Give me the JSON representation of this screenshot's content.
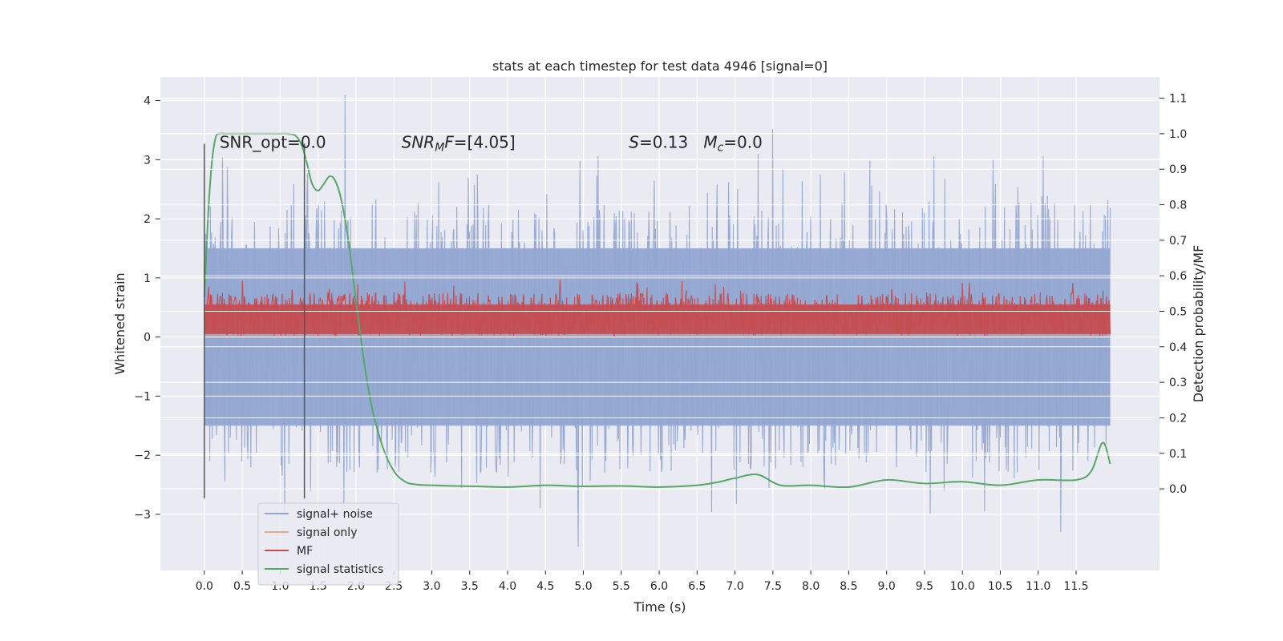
{
  "chart_data": {
    "type": "line",
    "title": "stats at each timestep for test data 4946 [signal=0]",
    "xlabel": "Time (s)",
    "ylabel": "Whitened strain",
    "y2label": "Detection probability/MF",
    "xlim": [
      -0.58,
      12.6
    ],
    "ylim": [
      -3.95,
      4.4
    ],
    "y2lim": [
      -0.23,
      1.16
    ],
    "x_ticks": [
      0.0,
      0.5,
      1.0,
      1.5,
      2.0,
      2.5,
      3.0,
      3.5,
      4.0,
      4.5,
      5.0,
      5.5,
      6.0,
      6.5,
      7.0,
      7.5,
      8.0,
      8.5,
      9.0,
      9.5,
      10.0,
      10.5,
      11.0,
      11.5
    ],
    "x_tick_labels": [
      "0.0",
      "0.5",
      "1.0",
      "1.5",
      "2.0",
      "2.5",
      "3.0",
      "3.5",
      "4.0",
      "4.5",
      "5.0",
      "5.5",
      "6.0",
      "6.5",
      "7.0",
      "7.5",
      "8.0",
      "8.5",
      "9.0",
      "9.5",
      "10.0",
      "10.5",
      "11.0",
      "11.5"
    ],
    "y_ticks": [
      -3,
      -2,
      -1,
      0,
      1,
      2,
      3,
      4
    ],
    "y_tick_labels": [
      "−3",
      "−2",
      "−1",
      "0",
      "1",
      "2",
      "3",
      "4"
    ],
    "y2_ticks": [
      0.0,
      0.1,
      0.2,
      0.3,
      0.4,
      0.5,
      0.6,
      0.7,
      0.8,
      0.9,
      1.0,
      1.1
    ],
    "y2_tick_labels": [
      "0.0",
      "0.1",
      "0.2",
      "0.3",
      "0.4",
      "0.5",
      "0.6",
      "0.7",
      "0.8",
      "0.9",
      "1.0",
      "1.1"
    ],
    "grid": true,
    "legend_position": "lower-left",
    "vlines": [
      0.0,
      1.32
    ],
    "vline_range": [
      -2.73,
      3.27
    ],
    "series": [
      {
        "name": "signal+ noise",
        "color": "#92a6d1",
        "axis": "left",
        "kind": "noise-band",
        "x_range": [
          0.0,
          11.95
        ],
        "center": 0.0,
        "band": [
          -1.5,
          1.5
        ],
        "extreme_peaks": [
          {
            "x": 1.86,
            "y": 4.1
          },
          {
            "x": 7.5,
            "y": 3.52
          },
          {
            "x": 4.93,
            "y": -3.55
          },
          {
            "x": 11.3,
            "y": -3.3
          }
        ]
      },
      {
        "name": "signal only",
        "color": "#e8a88a",
        "axis": "left",
        "x": [
          0.0,
          11.95
        ],
        "y": [
          0.0,
          0.0
        ]
      },
      {
        "name": "MF",
        "color": "#c44e52",
        "axis": "left",
        "kind": "noise-band",
        "x_range": [
          0.0,
          11.95
        ],
        "center": 0.25,
        "band": [
          0.02,
          0.75
        ],
        "peak_max": 1.0
      },
      {
        "name": "signal statistics",
        "color": "#55a868",
        "axis": "right",
        "x": [
          0.0,
          0.05,
          0.1,
          0.15,
          0.2,
          0.3,
          0.5,
          0.8,
          1.0,
          1.1,
          1.2,
          1.28,
          1.35,
          1.42,
          1.5,
          1.58,
          1.65,
          1.72,
          1.8,
          1.9,
          2.0,
          2.1,
          2.2,
          2.35,
          2.5,
          2.65,
          2.8,
          3.0,
          3.3,
          3.6,
          4.0,
          4.5,
          4.8,
          5.0,
          5.5,
          6.0,
          6.5,
          6.8,
          7.0,
          7.3,
          7.6,
          8.0,
          8.5,
          9.0,
          9.5,
          10.0,
          10.5,
          11.0,
          11.5,
          11.7,
          11.85,
          11.95
        ],
        "y": [
          0.54,
          0.77,
          0.92,
          0.99,
          1.0,
          1.0,
          1.0,
          1.0,
          1.0,
          1.0,
          0.995,
          0.97,
          0.92,
          0.86,
          0.84,
          0.86,
          0.88,
          0.87,
          0.82,
          0.7,
          0.53,
          0.37,
          0.24,
          0.12,
          0.05,
          0.02,
          0.012,
          0.01,
          0.008,
          0.007,
          0.005,
          0.01,
          0.008,
          0.007,
          0.008,
          0.005,
          0.01,
          0.02,
          0.03,
          0.04,
          0.01,
          0.01,
          0.005,
          0.025,
          0.015,
          0.02,
          0.01,
          0.025,
          0.025,
          0.05,
          0.13,
          0.07
        ]
      }
    ],
    "annotations": [
      {
        "text": "SNR_opt=0.0",
        "x": 0.2,
        "y": 3.2
      },
      {
        "text_parts": [
          "SNR",
          "M",
          "F=[4.05]"
        ],
        "x": 2.6,
        "y": 3.2
      },
      {
        "text_parts": [
          "S",
          "=0.13   ",
          "M",
          "c",
          "=0.0"
        ],
        "x": 5.6,
        "y": 3.2
      }
    ]
  }
}
